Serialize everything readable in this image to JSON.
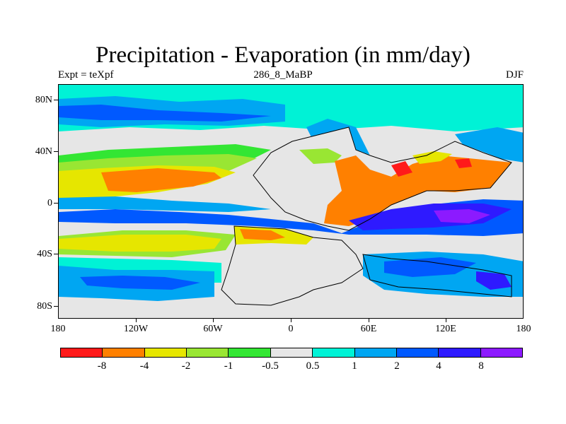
{
  "title": "Precipitation - Evaporation (in mm/day)",
  "left_label": "Expt = teXpf",
  "center_label": "286_8_MaBP",
  "right_label": "DJF",
  "lat_labels": [
    "80N",
    "40N",
    "0",
    "40S",
    "80S"
  ],
  "lon_labels": [
    "180",
    "120W",
    "60W",
    "0",
    "60E",
    "120E",
    "180"
  ],
  "colorbar": {
    "labels": [
      "-8",
      "-4",
      "-2",
      "-1",
      "-0.5",
      "0.5",
      "1",
      "2",
      "4",
      "8"
    ],
    "colors": [
      "#ff1a1a",
      "#ff8000",
      "#e6e600",
      "#99e633",
      "#33e633",
      "#e6e6e6",
      "#00f2d6",
      "#00a6f2",
      "#0059ff",
      "#2e1aff",
      "#8c1aff"
    ]
  },
  "map_data": {
    "type": "filled-contour",
    "variable": "Precipitation - Evaporation",
    "units": "mm/day",
    "season": "DJF",
    "lon_range": [
      -180,
      180
    ],
    "lat_range": [
      -90,
      90
    ],
    "background_color": "#e6e6e6",
    "coastline_color": "#000000"
  }
}
